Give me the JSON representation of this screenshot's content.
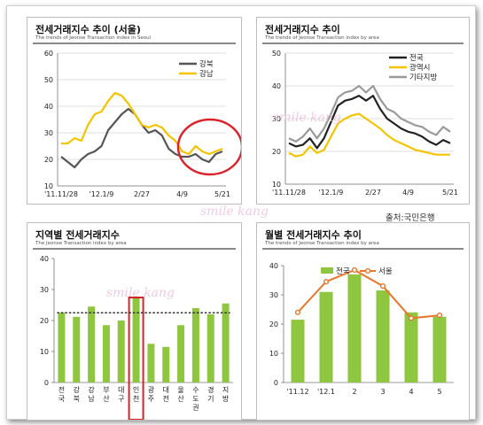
{
  "source_note": "출처:국민은행",
  "watermark": "smile kang",
  "colors": {
    "gangbuk": "#555555",
    "gangnam": "#f5c400",
    "national": "#222222",
    "metro": "#f5c400",
    "other": "#9a9a9a",
    "bar": "#8ec63f",
    "seoul_line": "#e8762d",
    "highlight": "#d9222a"
  },
  "chart_data": [
    {
      "type": "line",
      "title": "전세거래지수 추이 (서울)",
      "subtitle": "The trends of Jeonse Transaction index in Seoul",
      "x_tick_labels": [
        "'11.11/28",
        "'12.1/9",
        "2/27",
        "4/9",
        "5/21"
      ],
      "ylim": [
        10,
        60
      ],
      "y_ticks": [
        10,
        20,
        30,
        40,
        50,
        60
      ],
      "legend_position": "top-right",
      "highlight_circle": "4/9 – 5/21",
      "series": [
        {
          "name": "강북",
          "values": [
            21,
            19,
            17,
            20,
            22,
            23,
            25,
            31,
            34,
            37,
            39,
            37,
            33,
            30,
            31,
            29,
            24,
            22,
            21,
            21,
            22,
            20,
            19,
            22,
            23
          ]
        },
        {
          "name": "강남",
          "values": [
            26,
            26,
            28,
            27,
            33,
            37,
            38,
            42,
            45,
            44,
            41,
            37,
            33,
            32,
            33,
            32,
            29,
            27,
            23,
            22,
            25,
            23,
            22,
            23,
            24
          ]
        }
      ]
    },
    {
      "type": "line",
      "title": "전세거래지수 추이",
      "subtitle": "The trends of Jeonse Transaction index by area",
      "x_tick_labels": [
        "'11.11/28",
        "'12.1/9",
        "2/27",
        "4/9",
        "5/21"
      ],
      "ylim": [
        10,
        50
      ],
      "y_ticks": [
        10,
        20,
        30,
        40,
        50
      ],
      "legend_position": "top-right",
      "series": [
        {
          "name": "전국",
          "values": [
            22.5,
            21.5,
            22,
            24,
            21,
            24,
            29,
            34,
            35.5,
            36,
            37,
            35.5,
            37,
            33,
            30,
            28.5,
            27,
            26,
            25.5,
            24.5,
            23,
            22,
            23.5,
            22.5
          ]
        },
        {
          "name": "광역시",
          "values": [
            19.5,
            18.5,
            19,
            21.5,
            19.5,
            20.5,
            24.5,
            28.5,
            30,
            31,
            31.5,
            30,
            28.5,
            27,
            25,
            23.5,
            22.5,
            21.5,
            20.5,
            20,
            19.5,
            19,
            19,
            19
          ]
        },
        {
          "name": "기타지방",
          "values": [
            24,
            23,
            24.5,
            27,
            24,
            27,
            31.5,
            36.5,
            38,
            38.5,
            40,
            38,
            40,
            36,
            33,
            32,
            30,
            29,
            28,
            27.5,
            26,
            25,
            27.5,
            26
          ]
        }
      ]
    },
    {
      "type": "bar",
      "title": "지역별 전세거래지수",
      "subtitle": "The Jeonse Transaction index by area",
      "categories": [
        "전국",
        "강북",
        "강남",
        "부산",
        "대구",
        "인천",
        "광주",
        "대전",
        "울산",
        "수도권",
        "경기",
        "지방"
      ],
      "values": [
        22.5,
        21.2,
        24.5,
        18.5,
        20,
        27.5,
        12.5,
        11.5,
        18.5,
        24,
        22,
        25.5
      ],
      "reference_line": 22.5,
      "highlighted_category": "인천",
      "ylim": [
        0,
        40
      ],
      "y_ticks": [
        0,
        10,
        20,
        30,
        40
      ]
    },
    {
      "type": "bar",
      "title": "월별 전세거래지수 추이",
      "subtitle": "The trends of Jeonse Transaction index by area",
      "categories": [
        "'11.12",
        "'12.1",
        "2",
        "3",
        "4",
        "5"
      ],
      "series": [
        {
          "name": "전국",
          "type": "bar",
          "values": [
            21.5,
            31,
            37,
            31.5,
            24,
            22.5
          ]
        },
        {
          "name": "서울",
          "type": "line",
          "values": [
            24,
            34.5,
            38.5,
            33,
            22,
            23
          ]
        }
      ],
      "ylim": [
        0,
        40
      ],
      "y_ticks": [
        0,
        10,
        20,
        30,
        40
      ],
      "legend_position": "top"
    }
  ]
}
